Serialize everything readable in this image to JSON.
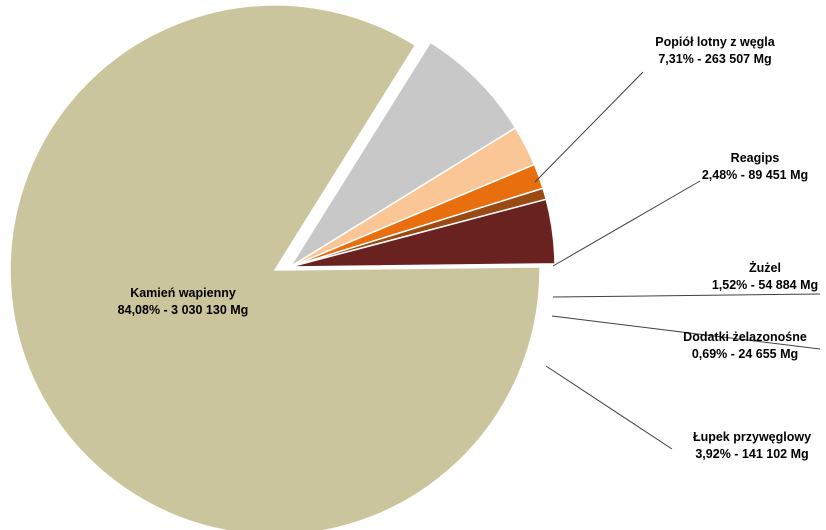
{
  "chart_data": {
    "type": "pie",
    "title": "",
    "slices": [
      {
        "name": "Kamień wapienny",
        "percent": 84.08,
        "value": 3030130,
        "label_line1": "Kamień wapienny",
        "label_line2": "84,08% - 3 030 130 Mg",
        "color": "#CBC59E"
      },
      {
        "name": "Popiół lotny z węgla",
        "percent": 7.31,
        "value": 263507,
        "label_line1": "Popiół lotny z węgla",
        "label_line2": "7,31% - 263 507 Mg",
        "color": "#C8C8C8"
      },
      {
        "name": "Reagips",
        "percent": 2.48,
        "value": 89451,
        "label_line1": "Reagips",
        "label_line2": "2,48% - 89 451 Mg",
        "color": "#FBC696"
      },
      {
        "name": "Żużel",
        "percent": 1.52,
        "value": 54884,
        "label_line1": "Żużel",
        "label_line2": "1,52% - 54 884 Mg",
        "color": "#E86E0E"
      },
      {
        "name": "Dodatki żelazonośne",
        "percent": 0.69,
        "value": 24655,
        "label_line1": "Dodatki żelazonośne",
        "label_line2": "0,69% - 24 655 Mg",
        "color": "#9A4A12"
      },
      {
        "name": "Łupek przywęglowy",
        "percent": 3.92,
        "value": 141102,
        "label_line1": "Łupek przywęglowy",
        "label_line2": "3,92% - 141 102 Mg",
        "color": "#6A2220"
      }
    ],
    "legend": "none",
    "labels": "outside with leader lines"
  }
}
